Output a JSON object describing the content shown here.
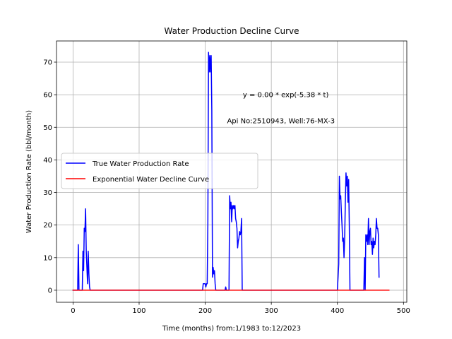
{
  "chart_data": {
    "type": "line",
    "title": "Water Production Decline Curve",
    "xlabel": "Time (months) from:1/1983 to:12/2023",
    "ylabel": "Water Production Rate (bbl/month)",
    "xlim": [
      -25,
      505
    ],
    "ylim": [
      -3.7,
      76.5
    ],
    "xticks": [
      0,
      100,
      200,
      300,
      400,
      500
    ],
    "yticks": [
      0,
      10,
      20,
      30,
      40,
      50,
      60,
      70
    ],
    "grid": true,
    "legend_position": "center-left",
    "annotations": [
      {
        "text": "y = 0.00 * exp(-5.38 * t)",
        "x": 257,
        "y": 60
      },
      {
        "text": "Api No:2510943, Well:76-MX-3",
        "x": 233,
        "y": 52
      }
    ],
    "series": [
      {
        "name": "True Water Production Rate",
        "color": "#0000ff",
        "points": [
          [
            0,
            0
          ],
          [
            7,
            0
          ],
          [
            8,
            14
          ],
          [
            9,
            0
          ],
          [
            14,
            0
          ],
          [
            15,
            12
          ],
          [
            16,
            6
          ],
          [
            17,
            19
          ],
          [
            18,
            18
          ],
          [
            19,
            25
          ],
          [
            20,
            12
          ],
          [
            21,
            7
          ],
          [
            22,
            2
          ],
          [
            23,
            12
          ],
          [
            24,
            5
          ],
          [
            25,
            1
          ],
          [
            26,
            0
          ],
          [
            196,
            0
          ],
          [
            197,
            2
          ],
          [
            200,
            2
          ],
          [
            201,
            1
          ],
          [
            202,
            2
          ],
          [
            203,
            2
          ],
          [
            204,
            20
          ],
          [
            205,
            73
          ],
          [
            206,
            67
          ],
          [
            207,
            72
          ],
          [
            208,
            67
          ],
          [
            209,
            72
          ],
          [
            210,
            55
          ],
          [
            211,
            4
          ],
          [
            212,
            7
          ],
          [
            213,
            5
          ],
          [
            214,
            6
          ],
          [
            215,
            2
          ],
          [
            216,
            0
          ],
          [
            230,
            0
          ],
          [
            231,
            1
          ],
          [
            232,
            0
          ],
          [
            236,
            0
          ],
          [
            237,
            29
          ],
          [
            238,
            25
          ],
          [
            239,
            27
          ],
          [
            240,
            21
          ],
          [
            241,
            26
          ],
          [
            242,
            25
          ],
          [
            243,
            26
          ],
          [
            244,
            25
          ],
          [
            245,
            26
          ],
          [
            246,
            22
          ],
          [
            247,
            21
          ],
          [
            248,
            19
          ],
          [
            249,
            13
          ],
          [
            250,
            15
          ],
          [
            251,
            16
          ],
          [
            252,
            18
          ],
          [
            253,
            17
          ],
          [
            254,
            18
          ],
          [
            255,
            22
          ],
          [
            256,
            0
          ],
          [
            400,
            0
          ],
          [
            402,
            8
          ],
          [
            403,
            35
          ],
          [
            404,
            28
          ],
          [
            405,
            29
          ],
          [
            406,
            24
          ],
          [
            407,
            20
          ],
          [
            408,
            15
          ],
          [
            409,
            16
          ],
          [
            410,
            10
          ],
          [
            411,
            16
          ],
          [
            412,
            27
          ],
          [
            413,
            36
          ],
          [
            414,
            32
          ],
          [
            415,
            35
          ],
          [
            416,
            27
          ],
          [
            417,
            34
          ],
          [
            418,
            20
          ],
          [
            419,
            0
          ],
          [
            440,
            0
          ],
          [
            441,
            10
          ],
          [
            442,
            0
          ],
          [
            443,
            17
          ],
          [
            444,
            15
          ],
          [
            445,
            17
          ],
          [
            446,
            14
          ],
          [
            447,
            22
          ],
          [
            448,
            14
          ],
          [
            449,
            18
          ],
          [
            450,
            19
          ],
          [
            451,
            14
          ],
          [
            452,
            15
          ],
          [
            453,
            11
          ],
          [
            454,
            16
          ],
          [
            455,
            13
          ],
          [
            456,
            15
          ],
          [
            457,
            14
          ],
          [
            458,
            17
          ],
          [
            459,
            22
          ],
          [
            460,
            19
          ],
          [
            461,
            19
          ],
          [
            462,
            17
          ],
          [
            463,
            4
          ]
        ]
      },
      {
        "name": "Exponential Water Decline Curve",
        "color": "#ff0000",
        "points": [
          [
            0,
            0
          ],
          [
            478,
            0
          ]
        ]
      }
    ]
  }
}
